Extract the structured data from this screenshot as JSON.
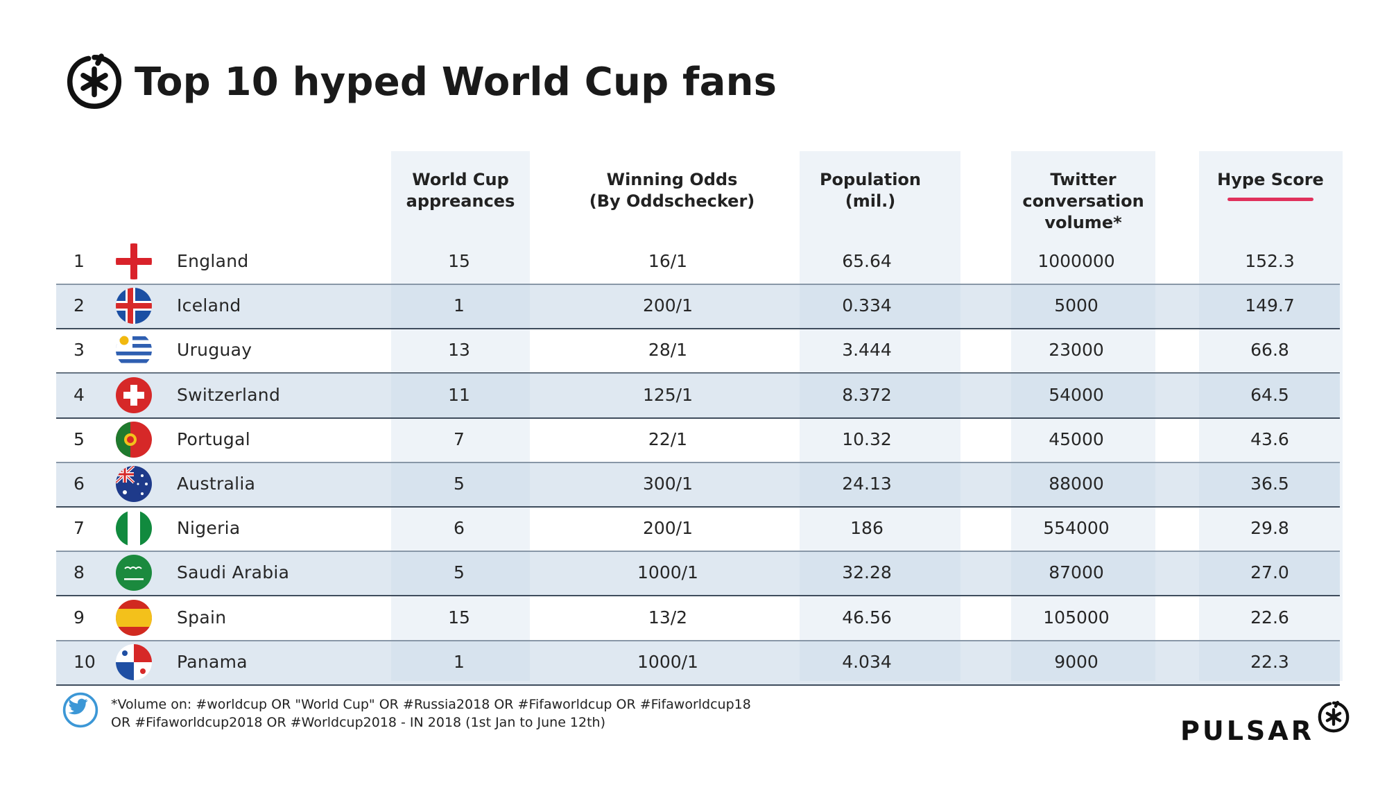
{
  "title": "Top 10 hyped World Cup fans",
  "footnote": {
    "line1": "*Volume on: #worldcup OR \"World Cup\" OR #Russia2018 OR #Fifaworldcup OR #Fifaworldcup18",
    "line2": "OR #Fifaworldcup2018 OR #Worldcup2018 - IN 2018 (1st Jan to June 12th)"
  },
  "brand": {
    "name": "PULSAR"
  },
  "icons": {
    "title_logo": "pulsar-asterisk-icon",
    "footnote_icon": "twitter-bird-icon",
    "brand_logo": "pulsar-asterisk-icon"
  },
  "colors": {
    "column_shade": "#eef3f8",
    "row_stripe": "#c4d6e6",
    "row_line": "#3e4c5c",
    "hype_underline": "#e0315c",
    "text": "#1d1d1d"
  },
  "chart_data": {
    "type": "table",
    "columns": [
      {
        "key": "appearances",
        "lines": [
          "World Cup",
          "appreances"
        ]
      },
      {
        "key": "odds",
        "lines": [
          "Winning Odds",
          "(By Oddschecker)"
        ]
      },
      {
        "key": "population",
        "lines": [
          "Population",
          "(mil.)"
        ]
      },
      {
        "key": "twitter",
        "lines": [
          "Twitter",
          "conversation",
          "volume*"
        ]
      },
      {
        "key": "hype",
        "lines": [
          "Hype Score"
        ]
      }
    ],
    "rows": [
      {
        "rank": "1",
        "country": "England",
        "flag": "england-flag-icon",
        "appearances": "15",
        "odds": "16/1",
        "population": "65.64",
        "twitter": "1000000",
        "hype": "152.3"
      },
      {
        "rank": "2",
        "country": "Iceland",
        "flag": "iceland-flag-icon",
        "appearances": "1",
        "odds": "200/1",
        "population": "0.334",
        "twitter": "5000",
        "hype": "149.7"
      },
      {
        "rank": "3",
        "country": "Uruguay",
        "flag": "uruguay-flag-icon",
        "appearances": "13",
        "odds": "28/1",
        "population": "3.444",
        "twitter": "23000",
        "hype": "66.8"
      },
      {
        "rank": "4",
        "country": "Switzerland",
        "flag": "switzerland-flag-icon",
        "appearances": "11",
        "odds": "125/1",
        "population": "8.372",
        "twitter": "54000",
        "hype": "64.5"
      },
      {
        "rank": "5",
        "country": "Portugal",
        "flag": "portugal-flag-icon",
        "appearances": "7",
        "odds": "22/1",
        "population": "10.32",
        "twitter": "45000",
        "hype": "43.6"
      },
      {
        "rank": "6",
        "country": "Australia",
        "flag": "australia-flag-icon",
        "appearances": "5",
        "odds": "300/1",
        "population": "24.13",
        "twitter": "88000",
        "hype": "36.5"
      },
      {
        "rank": "7",
        "country": "Nigeria",
        "flag": "nigeria-flag-icon",
        "appearances": "6",
        "odds": "200/1",
        "population": "186",
        "twitter": "554000",
        "hype": "29.8"
      },
      {
        "rank": "8",
        "country": "Saudi Arabia",
        "flag": "saudi-arabia-flag-icon",
        "appearances": "5",
        "odds": "1000/1",
        "population": "32.28",
        "twitter": "87000",
        "hype": "27.0"
      },
      {
        "rank": "9",
        "country": "Spain",
        "flag": "spain-flag-icon",
        "appearances": "15",
        "odds": "13/2",
        "population": "46.56",
        "twitter": "105000",
        "hype": "22.6"
      },
      {
        "rank": "10",
        "country": "Panama",
        "flag": "panama-flag-icon",
        "appearances": "1",
        "odds": "1000/1",
        "population": "4.034",
        "twitter": "9000",
        "hype": "22.3"
      }
    ]
  }
}
